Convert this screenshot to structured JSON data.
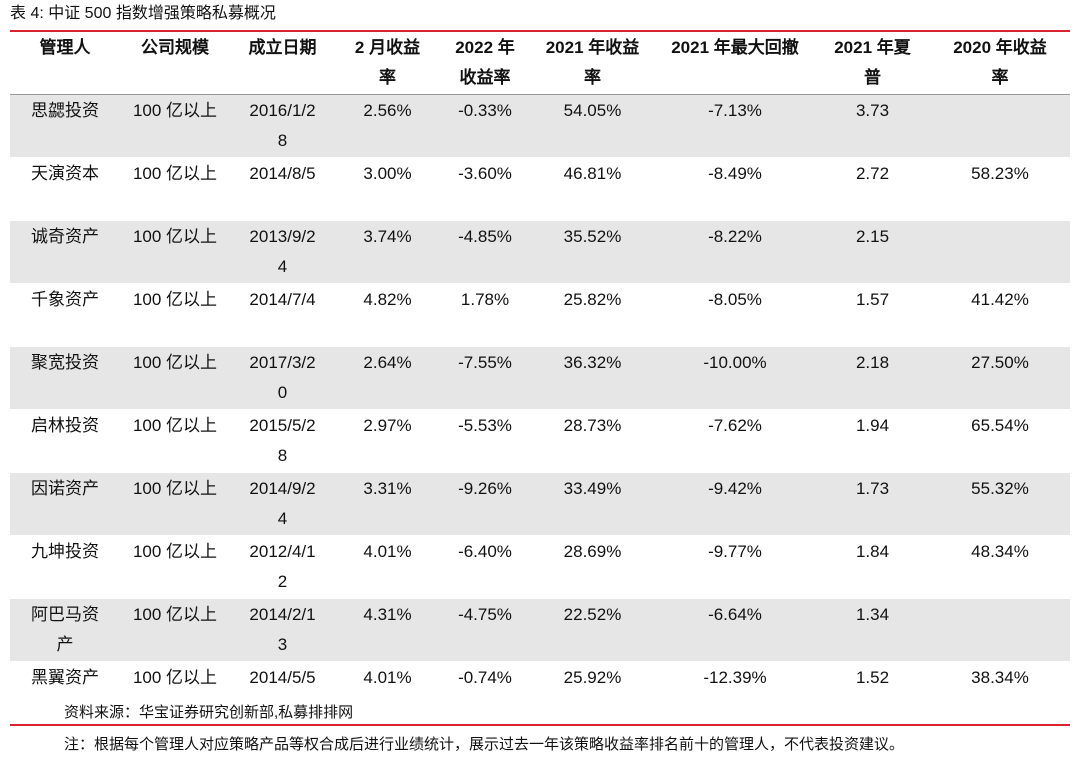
{
  "title": "表 4: 中证 500 指数增强策略私募概况",
  "table": {
    "header": [
      "管理人",
      "公司规模",
      "成立日期",
      "2 月收益率",
      "2022 年收益率",
      "2021 年收益率",
      "2021 年最大回撤",
      "2021 年夏普",
      "2020 年收益率"
    ],
    "rows": [
      [
        "思勰投资",
        "100 亿以上",
        "2016/1/28",
        "2.56%",
        "-0.33%",
        "54.05%",
        "-7.13%",
        "3.73",
        null
      ],
      [
        "天演资本",
        "100 亿以上",
        "2014/8/5",
        "3.00%",
        "-3.60%",
        "46.81%",
        "-8.49%",
        "2.72",
        "58.23%"
      ],
      [
        "诚奇资产",
        "100 亿以上",
        "2013/9/24",
        "3.74%",
        "-4.85%",
        "35.52%",
        "-8.22%",
        "2.15",
        null
      ],
      [
        "千象资产",
        "100 亿以上",
        "2014/7/4",
        "4.82%",
        "1.78%",
        "25.82%",
        "-8.05%",
        "1.57",
        "41.42%"
      ],
      [
        "聚宽投资",
        "100 亿以上",
        "2017/3/20",
        "2.64%",
        "-7.55%",
        "36.32%",
        "-10.00%",
        "2.18",
        "27.50%"
      ],
      [
        "启林投资",
        "100 亿以上",
        "2015/5/28",
        "2.97%",
        "-5.53%",
        "28.73%",
        "-7.62%",
        "1.94",
        "65.54%"
      ],
      [
        "因诺资产",
        "100 亿以上",
        "2014/9/24",
        "3.31%",
        "-9.26%",
        "33.49%",
        "-9.42%",
        "1.73",
        "55.32%"
      ],
      [
        "九坤投资",
        "100 亿以上",
        "2012/4/12",
        "4.01%",
        "-6.40%",
        "28.69%",
        "-9.77%",
        "1.84",
        "48.34%"
      ],
      [
        "阿巴马资产",
        "100 亿以上",
        "2014/2/13",
        "4.31%",
        "-4.75%",
        "22.52%",
        "-6.64%",
        "1.34",
        null
      ],
      [
        "黑翼资产",
        "100 亿以上",
        "2014/5/5",
        "4.01%",
        "-0.74%",
        "25.92%",
        "-12.39%",
        "1.52",
        "38.34%"
      ]
    ]
  },
  "source": "资料来源：华宝证券研究创新部,私募排排网",
  "note": "注：根据每个管理人对应策略产品等权合成后进行业绩统计，展示过去一年该策略收益率排名前十的管理人，不代表投资建议。"
}
